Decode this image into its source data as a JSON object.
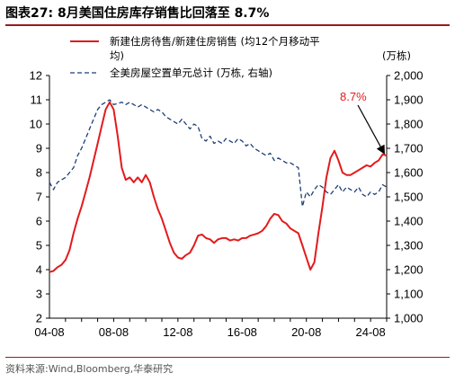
{
  "header": {
    "title": "图表27:  8月美国住房库存销售比回落至 8.7%"
  },
  "footer": {
    "source": "资料来源:Wind,Bloomberg,华泰研究"
  },
  "chart_data": {
    "type": "line",
    "x_ticks": [
      "04-08",
      "08-08",
      "12-08",
      "16-08",
      "20-08",
      "24-08"
    ],
    "x_range": [
      "2004-08",
      "2025-08"
    ],
    "left_axis": {
      "range": [
        2,
        12
      ],
      "ticks": [
        "2",
        "3",
        "4",
        "5",
        "6",
        "7",
        "8",
        "9",
        "10",
        "11",
        "12"
      ]
    },
    "right_axis": {
      "range": [
        1000,
        2000
      ],
      "unit_label": "(万栋)",
      "ticks": [
        "1,000",
        "1,100",
        "1,200",
        "1,300",
        "1,400",
        "1,500",
        "1,600",
        "1,700",
        "1,800",
        "1,900",
        "2,000"
      ]
    },
    "series": [
      {
        "name": "新建住房待售/新建住房销售 (均12个月移动平均)",
        "legend_line1": "新建住房待售/新建住房销售  (均12个月移动平",
        "legend_line2": "均)",
        "axis": "left",
        "color": "#e31a1c",
        "style": "solid",
        "points": [
          [
            "2004-08",
            3.9
          ],
          [
            "2004-11",
            3.95
          ],
          [
            "2005-02",
            4.1
          ],
          [
            "2005-05",
            4.2
          ],
          [
            "2005-08",
            4.4
          ],
          [
            "2005-11",
            4.8
          ],
          [
            "2006-02",
            5.5
          ],
          [
            "2006-05",
            6.1
          ],
          [
            "2006-08",
            6.6
          ],
          [
            "2006-11",
            7.2
          ],
          [
            "2007-02",
            7.8
          ],
          [
            "2007-05",
            8.5
          ],
          [
            "2007-08",
            9.2
          ],
          [
            "2007-11",
            9.9
          ],
          [
            "2008-02",
            10.6
          ],
          [
            "2008-05",
            10.9
          ],
          [
            "2008-08",
            10.6
          ],
          [
            "2008-11",
            9.5
          ],
          [
            "2009-02",
            8.2
          ],
          [
            "2009-05",
            7.7
          ],
          [
            "2009-08",
            7.8
          ],
          [
            "2009-11",
            7.6
          ],
          [
            "2010-02",
            7.8
          ],
          [
            "2010-05",
            7.6
          ],
          [
            "2010-08",
            7.9
          ],
          [
            "2010-11",
            7.6
          ],
          [
            "2011-02",
            7.0
          ],
          [
            "2011-05",
            6.5
          ],
          [
            "2011-08",
            6.1
          ],
          [
            "2011-11",
            5.6
          ],
          [
            "2012-02",
            5.1
          ],
          [
            "2012-05",
            4.7
          ],
          [
            "2012-08",
            4.5
          ],
          [
            "2012-11",
            4.45
          ],
          [
            "2013-02",
            4.6
          ],
          [
            "2013-05",
            4.7
          ],
          [
            "2013-08",
            5.0
          ],
          [
            "2013-11",
            5.4
          ],
          [
            "2014-02",
            5.45
          ],
          [
            "2014-05",
            5.3
          ],
          [
            "2014-08",
            5.25
          ],
          [
            "2014-11",
            5.1
          ],
          [
            "2015-02",
            5.25
          ],
          [
            "2015-05",
            5.3
          ],
          [
            "2015-08",
            5.3
          ],
          [
            "2015-11",
            5.2
          ],
          [
            "2016-02",
            5.25
          ],
          [
            "2016-05",
            5.2
          ],
          [
            "2016-08",
            5.3
          ],
          [
            "2016-11",
            5.3
          ],
          [
            "2017-02",
            5.4
          ],
          [
            "2017-05",
            5.45
          ],
          [
            "2017-08",
            5.5
          ],
          [
            "2017-11",
            5.6
          ],
          [
            "2018-02",
            5.8
          ],
          [
            "2018-05",
            6.1
          ],
          [
            "2018-08",
            6.3
          ],
          [
            "2018-11",
            6.25
          ],
          [
            "2019-02",
            6.0
          ],
          [
            "2019-05",
            5.9
          ],
          [
            "2019-08",
            5.7
          ],
          [
            "2019-11",
            5.6
          ],
          [
            "2020-02",
            5.5
          ],
          [
            "2020-05",
            5.0
          ],
          [
            "2020-08",
            4.5
          ],
          [
            "2020-11",
            4.0
          ],
          [
            "2021-02",
            4.3
          ],
          [
            "2021-05",
            5.5
          ],
          [
            "2021-08",
            6.6
          ],
          [
            "2021-11",
            7.8
          ],
          [
            "2022-02",
            8.6
          ],
          [
            "2022-05",
            8.9
          ],
          [
            "2022-08",
            8.5
          ],
          [
            "2022-11",
            8.0
          ],
          [
            "2023-02",
            7.9
          ],
          [
            "2023-05",
            7.9
          ],
          [
            "2023-08",
            8.0
          ],
          [
            "2023-11",
            8.1
          ],
          [
            "2024-02",
            8.2
          ],
          [
            "2024-05",
            8.3
          ],
          [
            "2024-08",
            8.25
          ],
          [
            "2024-11",
            8.4
          ],
          [
            "2025-02",
            8.5
          ],
          [
            "2025-05",
            8.75
          ],
          [
            "2025-08",
            8.7
          ]
        ]
      },
      {
        "name": "全美房屋空置单元总计 (万栋, 右轴)",
        "axis": "right",
        "color": "#1f3f78",
        "style": "dashed",
        "points": [
          [
            "2004-08",
            1560
          ],
          [
            "2004-11",
            1530
          ],
          [
            "2005-02",
            1560
          ],
          [
            "2005-05",
            1570
          ],
          [
            "2005-08",
            1580
          ],
          [
            "2005-11",
            1600
          ],
          [
            "2006-02",
            1620
          ],
          [
            "2006-05",
            1670
          ],
          [
            "2006-08",
            1700
          ],
          [
            "2006-11",
            1740
          ],
          [
            "2007-02",
            1780
          ],
          [
            "2007-05",
            1820
          ],
          [
            "2007-08",
            1860
          ],
          [
            "2007-11",
            1880
          ],
          [
            "2008-02",
            1890
          ],
          [
            "2008-05",
            1900
          ],
          [
            "2008-08",
            1880
          ],
          [
            "2008-11",
            1885
          ],
          [
            "2009-02",
            1890
          ],
          [
            "2009-05",
            1880
          ],
          [
            "2009-08",
            1890
          ],
          [
            "2009-11",
            1880
          ],
          [
            "2010-02",
            1870
          ],
          [
            "2010-05",
            1880
          ],
          [
            "2010-08",
            1870
          ],
          [
            "2010-11",
            1860
          ],
          [
            "2011-02",
            1850
          ],
          [
            "2011-05",
            1860
          ],
          [
            "2011-08",
            1850
          ],
          [
            "2011-11",
            1830
          ],
          [
            "2012-02",
            1820
          ],
          [
            "2012-05",
            1810
          ],
          [
            "2012-08",
            1800
          ],
          [
            "2012-11",
            1820
          ],
          [
            "2013-02",
            1800
          ],
          [
            "2013-05",
            1780
          ],
          [
            "2013-08",
            1800
          ],
          [
            "2013-11",
            1790
          ],
          [
            "2014-02",
            1740
          ],
          [
            "2014-05",
            1730
          ],
          [
            "2014-08",
            1750
          ],
          [
            "2014-11",
            1720
          ],
          [
            "2015-02",
            1730
          ],
          [
            "2015-05",
            1720
          ],
          [
            "2015-08",
            1740
          ],
          [
            "2015-11",
            1730
          ],
          [
            "2016-02",
            1720
          ],
          [
            "2016-05",
            1740
          ],
          [
            "2016-08",
            1730
          ],
          [
            "2016-11",
            1710
          ],
          [
            "2017-02",
            1720
          ],
          [
            "2017-05",
            1700
          ],
          [
            "2017-08",
            1690
          ],
          [
            "2017-11",
            1680
          ],
          [
            "2018-02",
            1670
          ],
          [
            "2018-05",
            1680
          ],
          [
            "2018-08",
            1650
          ],
          [
            "2018-11",
            1660
          ],
          [
            "2019-02",
            1650
          ],
          [
            "2019-05",
            1640
          ],
          [
            "2019-08",
            1640
          ],
          [
            "2019-11",
            1630
          ],
          [
            "2020-02",
            1620
          ],
          [
            "2020-05",
            1460
          ],
          [
            "2020-08",
            1520
          ],
          [
            "2020-11",
            1500
          ],
          [
            "2021-02",
            1530
          ],
          [
            "2021-05",
            1550
          ],
          [
            "2021-08",
            1540
          ],
          [
            "2021-11",
            1520
          ],
          [
            "2022-02",
            1510
          ],
          [
            "2022-05",
            1530
          ],
          [
            "2022-08",
            1550
          ],
          [
            "2022-11",
            1520
          ],
          [
            "2023-02",
            1540
          ],
          [
            "2023-05",
            1530
          ],
          [
            "2023-08",
            1520
          ],
          [
            "2023-11",
            1540
          ],
          [
            "2024-02",
            1510
          ],
          [
            "2024-05",
            1500
          ],
          [
            "2024-08",
            1520
          ],
          [
            "2024-11",
            1510
          ],
          [
            "2025-02",
            1520
          ],
          [
            "2025-05",
            1550
          ],
          [
            "2025-08",
            1540
          ]
        ]
      }
    ],
    "annotation": {
      "text": "8.7%",
      "points_to": [
        "2025-08",
        8.7
      ]
    },
    "grid": false,
    "legend_position": "top"
  }
}
